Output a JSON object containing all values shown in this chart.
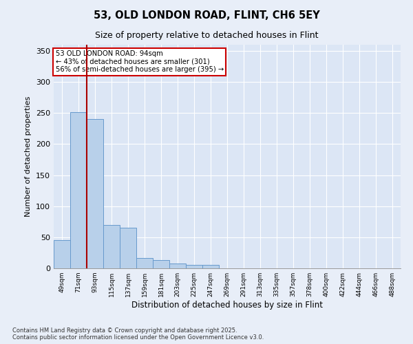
{
  "title1": "53, OLD LONDON ROAD, FLINT, CH6 5EY",
  "title2": "Size of property relative to detached houses in Flint",
  "xlabel": "Distribution of detached houses by size in Flint",
  "ylabel": "Number of detached properties",
  "categories": [
    "49sqm",
    "71sqm",
    "93sqm",
    "115sqm",
    "137sqm",
    "159sqm",
    "181sqm",
    "203sqm",
    "225sqm",
    "247sqm",
    "269sqm",
    "291sqm",
    "313sqm",
    "335sqm",
    "357sqm",
    "378sqm",
    "400sqm",
    "422sqm",
    "444sqm",
    "466sqm",
    "488sqm"
  ],
  "values": [
    45,
    252,
    240,
    70,
    65,
    17,
    13,
    8,
    5,
    5,
    0,
    0,
    0,
    0,
    0,
    0,
    0,
    0,
    0,
    0,
    0
  ],
  "bar_color": "#b8d0ea",
  "bar_edge_color": "#6699cc",
  "bg_color": "#dce6f5",
  "grid_color": "#ffffff",
  "fig_bg_color": "#e8eef8",
  "vline_x_idx": 1.5,
  "vline_color": "#aa0000",
  "annotation_text": "53 OLD LONDON ROAD: 94sqm\n← 43% of detached houses are smaller (301)\n56% of semi-detached houses are larger (395) →",
  "annotation_box_color": "#cc0000",
  "footer": "Contains HM Land Registry data © Crown copyright and database right 2025.\nContains public sector information licensed under the Open Government Licence v3.0.",
  "ylim": [
    0,
    360
  ],
  "yticks": [
    0,
    50,
    100,
    150,
    200,
    250,
    300,
    350
  ]
}
